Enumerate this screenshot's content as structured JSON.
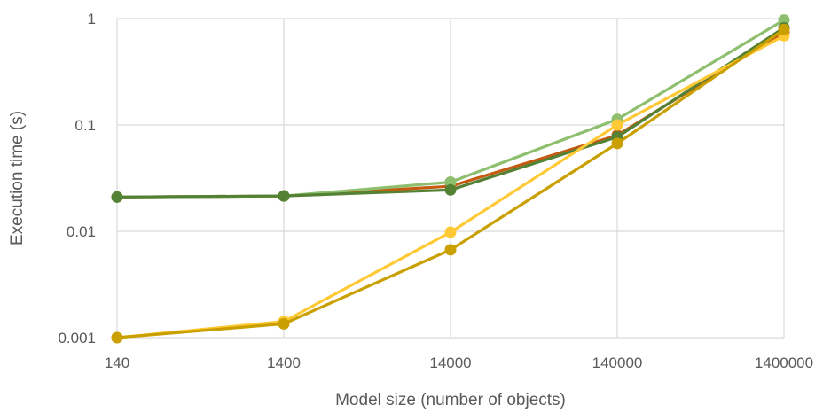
{
  "chart_data": {
    "type": "line",
    "title": "",
    "xlabel": "Model size (number of objects)",
    "ylabel": "Execution time (s)",
    "x": [
      140,
      1400,
      14000,
      140000,
      1400000
    ],
    "x_tick_labels": [
      "140",
      "1400",
      "14000",
      "140000",
      "1400000"
    ],
    "x_scale": "log",
    "y_scale": "log",
    "ylim": [
      0.001,
      1
    ],
    "y_ticks": [
      0.001,
      0.01,
      0.1,
      1
    ],
    "y_tick_labels": [
      "0.001",
      "0.01",
      "0.1",
      "1"
    ],
    "grid": true,
    "legend": "none",
    "series": [
      {
        "color": "#c55a11",
        "values": [
          0.021,
          0.0215,
          0.0265,
          0.08,
          0.74
        ]
      },
      {
        "color": "#8dbf6e",
        "values": [
          0.021,
          0.0215,
          0.029,
          0.113,
          0.97
        ]
      },
      {
        "color": "#548235",
        "values": [
          0.021,
          0.0215,
          0.0245,
          0.077,
          0.82
        ]
      },
      {
        "color": "#ffc935",
        "values": [
          0.001,
          0.00142,
          0.0098,
          0.1,
          0.69
        ]
      },
      {
        "color": "#c9a000",
        "values": [
          0.001,
          0.00135,
          0.0067,
          0.067,
          0.79
        ]
      }
    ]
  }
}
